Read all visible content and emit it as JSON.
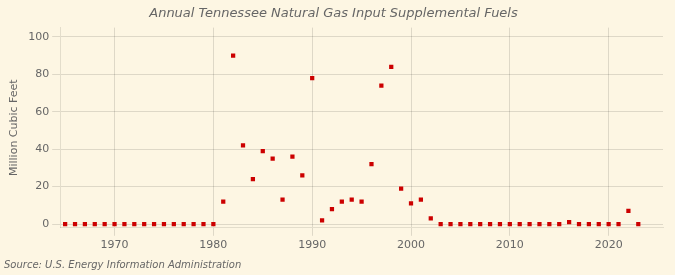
{
  "chart_data": {
    "type": "scatter",
    "title": "Annual Tennessee Natural Gas Input Supplemental Fuels",
    "ylabel": "Million Cubic Feet",
    "annotation": "Source: U.S. Energy Information Administration",
    "color": "#CC0000",
    "marker": "square",
    "grid": true,
    "xlim": [
      1964.5,
      2025.5
    ],
    "ylim": [
      -2,
      105
    ],
    "xticks": [
      1970,
      1980,
      1990,
      2000,
      2010,
      2020
    ],
    "yticks": [
      0,
      20,
      40,
      60,
      80,
      100
    ],
    "x": [
      1965,
      1966,
      1967,
      1968,
      1969,
      1970,
      1971,
      1972,
      1973,
      1974,
      1975,
      1976,
      1977,
      1978,
      1979,
      1980,
      1981,
      1982,
      1983,
      1984,
      1985,
      1986,
      1987,
      1988,
      1989,
      1990,
      1991,
      1992,
      1993,
      1994,
      1995,
      1996,
      1997,
      1998,
      1999,
      2000,
      2001,
      2002,
      2003,
      2004,
      2005,
      2006,
      2007,
      2008,
      2009,
      2010,
      2011,
      2012,
      2013,
      2014,
      2015,
      2016,
      2017,
      2018,
      2019,
      2020,
      2021,
      2022,
      2023
    ],
    "values": [
      0,
      0,
      0,
      0,
      0,
      0,
      0,
      0,
      0,
      0,
      0,
      0,
      0,
      0,
      0,
      0,
      12,
      90,
      42,
      24,
      39,
      35,
      13,
      36,
      26,
      78,
      2,
      8,
      12,
      13,
      12,
      32,
      74,
      84,
      19,
      11,
      13,
      3,
      0,
      0,
      0,
      0,
      0,
      0,
      0,
      0,
      0,
      0,
      0,
      0,
      0,
      1,
      0,
      0,
      0,
      0,
      0,
      7,
      0
    ]
  }
}
